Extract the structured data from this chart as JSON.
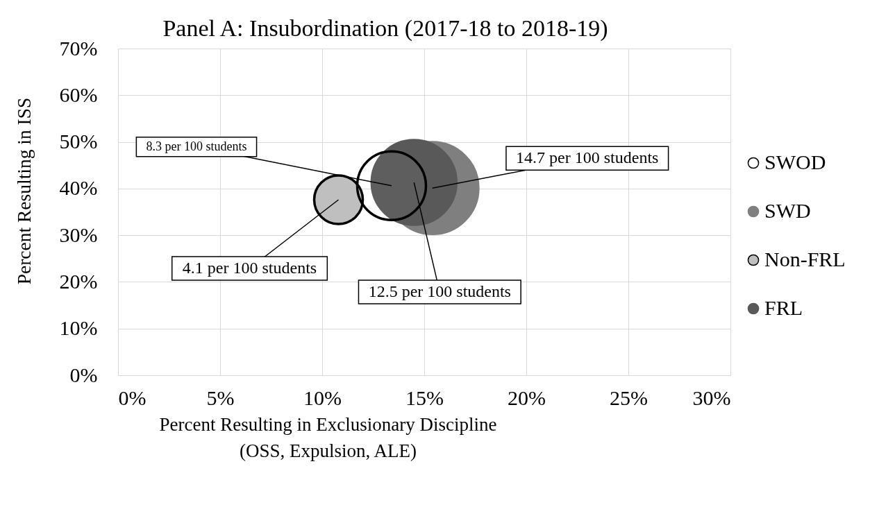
{
  "chart_data": {
    "type": "bubble",
    "title": "Panel A: Insubordination (2017-18 to 2018-19)",
    "xlabel": "Percent Resulting in Exclusionary Discipline\n(OSS, Expulsion, ALE)",
    "ylabel": "Percent Resulting in ISS",
    "series": [
      {
        "name": "SWOD",
        "color": "#ffffff",
        "x": [
          13.4
        ],
        "values": [
          40.6
        ],
        "sizes": [
          0.56
        ]
      },
      {
        "name": "SWD",
        "color": "#7f7f7f",
        "x": [
          15.4
        ],
        "values": [
          40.1
        ],
        "sizes": [
          1
        ]
      },
      {
        "name": "Non-FRL",
        "color": "#bfbfbf",
        "x": [
          10.8
        ],
        "values": [
          37.6
        ],
        "sizes": [
          0.28
        ]
      },
      {
        "name": "FRL",
        "color": "#595959",
        "x": [
          14.5
        ],
        "values": [
          41.3
        ],
        "sizes": [
          0.85
        ]
      }
    ],
    "annotations": [
      {
        "text": "8.3 per 100 students",
        "x": 13.4,
        "y": 40.6
      },
      {
        "text": "4.1 per 100 students",
        "x": 10.8,
        "y": 37.6
      },
      {
        "text": "12.5 per 100 students",
        "x": 14.5,
        "y": 41.3
      },
      {
        "text": "14.7 per 100 students",
        "x": 15.4,
        "y": 40.1
      }
    ],
    "xlim": [
      0,
      30
    ],
    "ylim": [
      0,
      70
    ],
    "xticks": [
      {
        "value": 0,
        "label": "0%"
      },
      {
        "value": 5,
        "label": "5%"
      },
      {
        "value": 10,
        "label": "10%"
      },
      {
        "value": 15,
        "label": "15%"
      },
      {
        "value": 20,
        "label": "20%"
      },
      {
        "value": 25,
        "label": "25%"
      },
      {
        "value": 30,
        "label": "30%"
      }
    ],
    "yticks": [
      {
        "value": 0,
        "label": "0%"
      },
      {
        "value": 10,
        "label": "10%"
      },
      {
        "value": 20,
        "label": "20%"
      },
      {
        "value": 30,
        "label": "30%"
      },
      {
        "value": 40,
        "label": "40%"
      },
      {
        "value": 50,
        "label": "50%"
      },
      {
        "value": 60,
        "label": "60%"
      },
      {
        "value": 70,
        "label": "70%"
      }
    ],
    "grid": true,
    "legend": "right"
  }
}
